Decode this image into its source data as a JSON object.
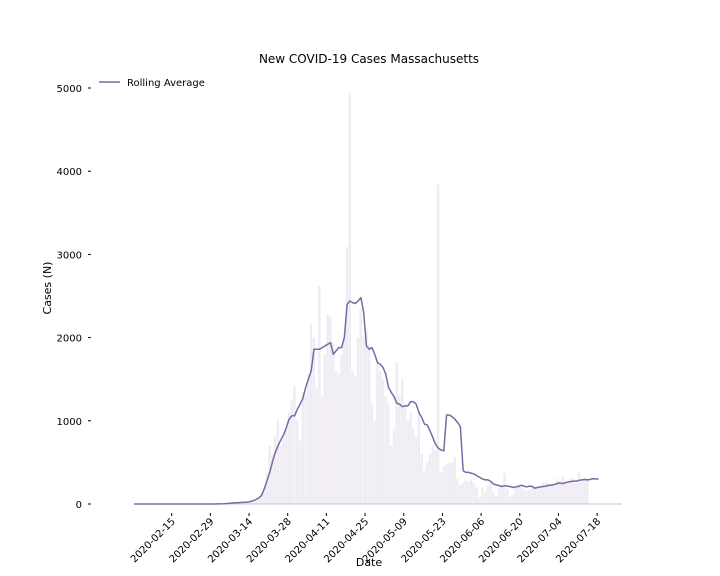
{
  "chart_data": {
    "type": "bar",
    "title": "New COVID-19 Cases Massachusetts",
    "xlabel": "Date",
    "ylabel": "Cases (N)",
    "ylim": [
      0,
      5000
    ],
    "yticks": [
      0,
      1000,
      2000,
      3000,
      4000,
      5000
    ],
    "start_date": "2020-02-01",
    "end_date": "2020-07-26",
    "xtick_labels": [
      "2020-02-15",
      "2020-02-29",
      "2020-03-14",
      "2020-03-28",
      "2020-04-11",
      "2020-04-25",
      "2020-05-09",
      "2020-05-23",
      "2020-06-06",
      "2020-06-20",
      "2020-07-04",
      "2020-07-18"
    ],
    "legend": {
      "position": "top-left",
      "entries": [
        "Rolling Average"
      ]
    },
    "grid": false,
    "colors": {
      "bars": "#efecf3",
      "line": "#7a6aa3"
    },
    "series": [
      {
        "kind": "bar",
        "values": [
          0,
          0,
          0,
          0,
          0,
          0,
          0,
          0,
          0,
          0,
          0,
          0,
          0,
          0,
          0,
          0,
          0,
          0,
          0,
          0,
          0,
          0,
          0,
          0,
          0,
          0,
          0,
          0,
          0,
          0,
          1,
          2,
          1,
          2,
          5,
          8,
          10,
          20,
          15,
          25,
          20,
          30,
          40,
          50,
          60,
          80,
          130,
          200,
          380,
          700,
          600,
          820,
          1010,
          700,
          800,
          900,
          1100,
          1240,
          1430,
          1000,
          760,
          1350,
          1300,
          1560,
          2170,
          2000,
          1400,
          2620,
          1300,
          1800,
          2280,
          2250,
          1940,
          1600,
          1560,
          1800,
          2000,
          3090,
          4950,
          1600,
          1540,
          2000,
          2350,
          2010,
          2100,
          1900,
          1200,
          1000,
          1700,
          1600,
          1500,
          1300,
          1200,
          700,
          900,
          1700,
          1300,
          1500,
          1200,
          1000,
          1100,
          900,
          800,
          1100,
          600,
          400,
          500,
          600,
          700,
          650,
          3840,
          380,
          450,
          480,
          500,
          500,
          560,
          300,
          230,
          250,
          280,
          270,
          300,
          250,
          200,
          80,
          200,
          150,
          220,
          280,
          160,
          100,
          190,
          230,
          370,
          180,
          90,
          110,
          200,
          240,
          200,
          180,
          160,
          170,
          200,
          190,
          210,
          220,
          250,
          280,
          250,
          240,
          220,
          300,
          280,
          330,
          290,
          270,
          300,
          310,
          250,
          380,
          300,
          320,
          310
        ]
      },
      {
        "kind": "line",
        "name": "Rolling Average",
        "values": [
          0,
          0,
          0,
          0,
          0,
          0,
          0,
          0,
          0,
          0,
          0,
          0,
          0,
          0,
          0,
          0,
          0,
          0,
          0,
          0,
          0,
          0,
          0,
          0,
          0,
          0,
          0,
          0,
          0,
          0,
          1,
          2,
          3,
          5,
          8,
          10,
          13,
          15,
          17,
          19,
          20,
          22,
          30,
          40,
          55,
          72,
          100,
          180,
          280,
          380,
          510,
          620,
          700,
          770,
          830,
          920,
          1020,
          1060,
          1060,
          1140,
          1200,
          1270,
          1400,
          1500,
          1600,
          1860,
          1860,
          1860,
          1880,
          1900,
          1920,
          1940,
          1800,
          1840,
          1880,
          1880,
          2000,
          2400,
          2440,
          2420,
          2410,
          2440,
          2480,
          2300,
          1900,
          1860,
          1880,
          1800,
          1700,
          1680,
          1640,
          1560,
          1400,
          1340,
          1290,
          1210,
          1200,
          1170,
          1180,
          1180,
          1230,
          1230,
          1200,
          1100,
          1040,
          960,
          950,
          880,
          800,
          720,
          670,
          650,
          640,
          1070,
          1070,
          1050,
          1020,
          980,
          930,
          400,
          380,
          380,
          370,
          360,
          340,
          320,
          300,
          290,
          290,
          270,
          240,
          230,
          220,
          210,
          220,
          215,
          210,
          200,
          205,
          210,
          225,
          215,
          205,
          215,
          210,
          190,
          200,
          205,
          210,
          215,
          225,
          225,
          235,
          245,
          255,
          245,
          255,
          265,
          270,
          275,
          275,
          285,
          290,
          295,
          290,
          295,
          305,
          300,
          300
        ]
      }
    ]
  }
}
